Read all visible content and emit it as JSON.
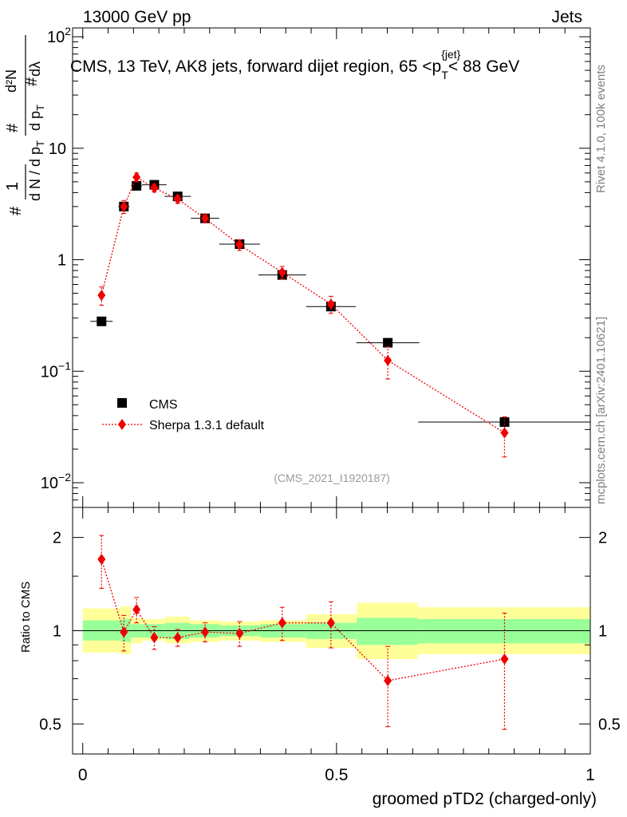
{
  "header": {
    "left": "13000 GeV pp",
    "right": "Jets"
  },
  "side_labels": {
    "rivet": "Rivet 4.1.0,  100k events",
    "mcplots": "mcplots.cern.ch [arXiv:2401.10621]"
  },
  "chart_data": [
    {
      "type": "scatter",
      "title": "CMS, 13 TeV, AK8 jets, forward dijet region, 65 <p_T^{jet}< 88 GeV",
      "title_main": "CMS, 13 TeV, AK8 jets, forward dijet region, 65 <p",
      "title_sup": "{jet}",
      "title_sub": "T",
      "title_end": "< 88 GeV",
      "watermark": "(CMS_2021_I1920187)",
      "xlabel": "groomed pTD2 (charged-only)",
      "ylabel": "1/dN/dp_T  d²N/dp_T dλ",
      "ylabel_parts": {
        "hash_top": "#",
        "hash_mid": "#",
        "hash_bot": "#",
        "num": "1",
        "den": "d N / d p",
        "den_sub": "T",
        "d2n": "d²N",
        "dpt": "d p",
        "dpt_sub": "T",
        "dl": "dλ"
      },
      "yscale": "log",
      "ylim": [
        0.006,
        120
      ],
      "xlim": [
        -0.02,
        1.0
      ],
      "xticks": [
        "0",
        "0.5",
        "1"
      ],
      "yticks": [
        {
          "base": "10",
          "exp": "−2"
        },
        {
          "base": "10",
          "exp": "−1"
        },
        {
          "base": "1",
          "exp": ""
        },
        {
          "base": "10",
          "exp": ""
        },
        {
          "base": "10",
          "exp": "2"
        }
      ],
      "legend": [
        "CMS",
        "Sherpa 1.3.1 default"
      ],
      "legend_position": "lower-left",
      "series": [
        {
          "name": "CMS",
          "color": "#000000",
          "marker": "square",
          "x": [
            0.037,
            0.081,
            0.106,
            0.141,
            0.187,
            0.241,
            0.309,
            0.393,
            0.489,
            0.601,
            0.831
          ],
          "y": [
            0.28,
            3.0,
            4.6,
            4.7,
            3.7,
            2.35,
            1.38,
            0.73,
            0.38,
            0.18,
            0.035
          ],
          "xerr": [
            0.022,
            0.011,
            0.011,
            0.024,
            0.026,
            0.028,
            0.04,
            0.047,
            0.049,
            0.062,
            0.17
          ]
        },
        {
          "name": "Sherpa 1.3.1 default",
          "color": "#ee0000",
          "marker": "diamond",
          "x": [
            0.037,
            0.081,
            0.106,
            0.141,
            0.187,
            0.241,
            0.309,
            0.393,
            0.489,
            0.601,
            0.831
          ],
          "y": [
            0.48,
            3.0,
            5.5,
            4.4,
            3.5,
            2.35,
            1.36,
            0.77,
            0.4,
            0.125,
            0.028
          ],
          "yerr_lo": [
            0.09,
            0.4,
            0.5,
            0.35,
            0.3,
            0.2,
            0.15,
            0.1,
            0.07,
            0.04,
            0.011
          ],
          "yerr_hi": [
            0.09,
            0.4,
            0.5,
            0.35,
            0.3,
            0.2,
            0.15,
            0.1,
            0.07,
            0.04,
            0.011
          ]
        }
      ]
    },
    {
      "type": "scatter",
      "ylabel": "Ratio to CMS",
      "yscale": "log",
      "ylim": [
        0.4,
        2.5
      ],
      "xlim": [
        -0.02,
        1.0
      ],
      "yticks": [
        "0.5",
        "1",
        "2"
      ],
      "reference_line": 1,
      "uncertainty_bands": [
        {
          "x0": 0.0,
          "x1": 0.075,
          "inner": [
            0.93,
            1.08
          ],
          "outer": [
            0.85,
            1.18
          ]
        },
        {
          "x0": 0.075,
          "x1": 0.095,
          "inner": [
            0.92,
            1.09
          ],
          "outer": [
            0.84,
            1.2
          ]
        },
        {
          "x0": 0.095,
          "x1": 0.118,
          "inner": [
            0.95,
            1.05
          ],
          "outer": [
            0.91,
            1.1
          ]
        },
        {
          "x0": 0.118,
          "x1": 0.162,
          "inner": [
            0.95,
            1.05
          ],
          "outer": [
            0.93,
            1.09
          ]
        },
        {
          "x0": 0.162,
          "x1": 0.211,
          "inner": [
            0.94,
            1.06
          ],
          "outer": [
            0.91,
            1.11
          ]
        },
        {
          "x0": 0.211,
          "x1": 0.27,
          "inner": [
            0.95,
            1.05
          ],
          "outer": [
            0.92,
            1.08
          ]
        },
        {
          "x0": 0.27,
          "x1": 0.35,
          "inner": [
            0.96,
            1.04
          ],
          "outer": [
            0.93,
            1.07
          ]
        },
        {
          "x0": 0.35,
          "x1": 0.44,
          "inner": [
            0.95,
            1.05
          ],
          "outer": [
            0.92,
            1.08
          ]
        },
        {
          "x0": 0.44,
          "x1": 0.54,
          "inner": [
            0.94,
            1.06
          ],
          "outer": [
            0.88,
            1.13
          ]
        },
        {
          "x0": 0.54,
          "x1": 0.66,
          "inner": [
            0.9,
            1.1
          ],
          "outer": [
            0.81,
            1.23
          ]
        },
        {
          "x0": 0.66,
          "x1": 1.0,
          "inner": [
            0.91,
            1.09
          ],
          "outer": [
            0.84,
            1.19
          ]
        }
      ],
      "series": [
        {
          "name": "Sherpa 1.3.1 default",
          "color": "#ee0000",
          "marker": "diamond",
          "x": [
            0.037,
            0.081,
            0.106,
            0.141,
            0.187,
            0.241,
            0.309,
            0.393,
            0.489,
            0.601,
            0.831
          ],
          "y": [
            1.7,
            0.99,
            1.17,
            0.95,
            0.95,
            0.99,
            0.98,
            1.06,
            1.06,
            0.69,
            0.81
          ],
          "yerr_lo": [
            0.33,
            0.13,
            0.11,
            0.08,
            0.06,
            0.07,
            0.09,
            0.13,
            0.18,
            0.2,
            0.33
          ],
          "yerr_hi": [
            0.33,
            0.13,
            0.11,
            0.08,
            0.06,
            0.07,
            0.09,
            0.13,
            0.18,
            0.2,
            0.33
          ]
        }
      ]
    }
  ]
}
